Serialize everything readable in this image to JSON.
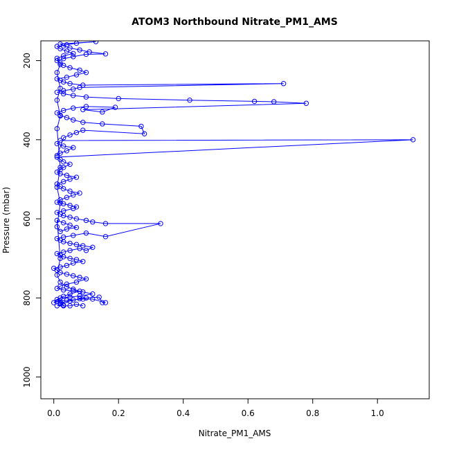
{
  "chart_data": {
    "type": "scatter",
    "title": "ATOM3 Northbound Nitrate_PM1_AMS",
    "xlabel": "Nitrate_PM1_AMS",
    "ylabel": "Pressure (mbar)",
    "xlim": [
      -0.04,
      1.16
    ],
    "ylim": [
      1055,
      150
    ],
    "y_reversed": true,
    "x_ticks": [
      "0.0",
      "0.2",
      "0.4",
      "0.6",
      "0.8",
      "1.0"
    ],
    "y_ticks": [
      "200",
      "400",
      "600",
      "800",
      "1000"
    ],
    "grid": false,
    "series": [
      {
        "color": "#0000ff",
        "marker": "open-circle",
        "connected": true,
        "points": [
          [
            0.01,
            820
          ],
          [
            0.03,
            818
          ],
          [
            0.02,
            812
          ],
          [
            0.05,
            808
          ],
          [
            0.08,
            802
          ],
          [
            0.1,
            800
          ],
          [
            0.14,
            798
          ],
          [
            0.15,
            812
          ],
          [
            0.16,
            812
          ],
          [
            0.12,
            803
          ],
          [
            0.09,
            803
          ],
          [
            0.06,
            805
          ],
          [
            0.04,
            806
          ],
          [
            0.02,
            808
          ],
          [
            0.01,
            810
          ],
          [
            0.0,
            812
          ],
          [
            0.02,
            800
          ],
          [
            0.05,
            798
          ],
          [
            0.08,
            795
          ],
          [
            0.12,
            790
          ],
          [
            0.09,
            785
          ],
          [
            0.06,
            782
          ],
          [
            0.03,
            780
          ],
          [
            0.01,
            776
          ],
          [
            0.02,
            770
          ],
          [
            0.04,
            765
          ],
          [
            0.07,
            760
          ],
          [
            0.1,
            752
          ],
          [
            0.08,
            748
          ],
          [
            0.06,
            744
          ],
          [
            0.04,
            740
          ],
          [
            0.02,
            736
          ],
          [
            0.01,
            730
          ],
          [
            0.0,
            725
          ],
          [
            0.02,
            722
          ],
          [
            0.04,
            718
          ],
          [
            0.06,
            712
          ],
          [
            0.09,
            708
          ],
          [
            0.07,
            703
          ],
          [
            0.05,
            700
          ],
          [
            0.03,
            696
          ],
          [
            0.02,
            692
          ],
          [
            0.01,
            688
          ],
          [
            0.03,
            684
          ],
          [
            0.05,
            680
          ],
          [
            0.08,
            675
          ],
          [
            0.1,
            680
          ],
          [
            0.12,
            672
          ],
          [
            0.09,
            668
          ],
          [
            0.07,
            665
          ],
          [
            0.05,
            662
          ],
          [
            0.03,
            658
          ],
          [
            0.02,
            654
          ],
          [
            0.01,
            650
          ],
          [
            0.03,
            646
          ],
          [
            0.06,
            642
          ],
          [
            0.1,
            636
          ],
          [
            0.16,
            645
          ],
          [
            0.33,
            612
          ],
          [
            0.16,
            612
          ],
          [
            0.12,
            608
          ],
          [
            0.1,
            604
          ],
          [
            0.07,
            600
          ],
          [
            0.05,
            596
          ],
          [
            0.03,
            592
          ],
          [
            0.02,
            588
          ],
          [
            0.01,
            584
          ],
          [
            0.03,
            580
          ],
          [
            0.06,
            574
          ],
          [
            0.07,
            570
          ],
          [
            0.05,
            566
          ],
          [
            0.03,
            562
          ],
          [
            0.01,
            558
          ],
          [
            0.02,
            552
          ],
          [
            0.04,
            546
          ],
          [
            0.06,
            540
          ],
          [
            0.08,
            535
          ],
          [
            0.05,
            530
          ],
          [
            0.03,
            524
          ],
          [
            0.02,
            518
          ],
          [
            0.01,
            512
          ],
          [
            0.03,
            506
          ],
          [
            0.05,
            500
          ],
          [
            0.07,
            495
          ],
          [
            0.04,
            490
          ],
          [
            0.02,
            486
          ],
          [
            0.01,
            482
          ],
          [
            0.02,
            476
          ],
          [
            0.03,
            470
          ],
          [
            0.05,
            462
          ],
          [
            0.03,
            456
          ],
          [
            0.02,
            450
          ],
          [
            0.01,
            444
          ],
          [
            1.11,
            400
          ],
          [
            0.02,
            402
          ],
          [
            0.01,
            410
          ],
          [
            0.03,
            416
          ],
          [
            0.06,
            420
          ],
          [
            0.04,
            428
          ],
          [
            0.02,
            434
          ],
          [
            0.01,
            440
          ],
          [
            0.03,
            395
          ],
          [
            0.05,
            388
          ],
          [
            0.07,
            382
          ],
          [
            0.09,
            376
          ],
          [
            0.28,
            385
          ],
          [
            0.27,
            366
          ],
          [
            0.15,
            360
          ],
          [
            0.09,
            356
          ],
          [
            0.06,
            350
          ],
          [
            0.04,
            344
          ],
          [
            0.02,
            338
          ],
          [
            0.01,
            332
          ],
          [
            0.03,
            326
          ],
          [
            0.06,
            320
          ],
          [
            0.1,
            316
          ],
          [
            0.19,
            318
          ],
          [
            0.15,
            330
          ],
          [
            0.09,
            324
          ],
          [
            0.78,
            308
          ],
          [
            0.68,
            304
          ],
          [
            0.62,
            303
          ],
          [
            0.42,
            300
          ],
          [
            0.2,
            296
          ],
          [
            0.1,
            292
          ],
          [
            0.06,
            288
          ],
          [
            0.03,
            284
          ],
          [
            0.01,
            280
          ],
          [
            0.03,
            276
          ],
          [
            0.06,
            272
          ],
          [
            0.08,
            268
          ],
          [
            0.71,
            258
          ],
          [
            0.09,
            262
          ],
          [
            0.05,
            258
          ],
          [
            0.03,
            254
          ],
          [
            0.02,
            250
          ],
          [
            0.01,
            246
          ],
          [
            0.04,
            242
          ],
          [
            0.07,
            236
          ],
          [
            0.1,
            230
          ],
          [
            0.08,
            224
          ],
          [
            0.05,
            218
          ],
          [
            0.03,
            212
          ],
          [
            0.02,
            206
          ],
          [
            0.01,
            200
          ],
          [
            0.03,
            195
          ],
          [
            0.06,
            190
          ],
          [
            0.1,
            184
          ],
          [
            0.16,
            183
          ],
          [
            0.11,
            178
          ],
          [
            0.08,
            173
          ],
          [
            0.05,
            168
          ],
          [
            0.03,
            163
          ],
          [
            0.02,
            158
          ],
          [
            0.13,
            152
          ],
          [
            0.07,
            156
          ],
          [
            0.04,
            160
          ],
          [
            0.01,
            164
          ],
          [
            0.02,
            170
          ],
          [
            0.04,
            176
          ],
          [
            0.06,
            182
          ],
          [
            0.03,
            188
          ],
          [
            0.01,
            194
          ],
          [
            0.02,
            210
          ],
          [
            0.01,
            230
          ],
          [
            0.02,
            270
          ],
          [
            0.01,
            300
          ],
          [
            0.02,
            340
          ],
          [
            0.01,
            372
          ],
          [
            0.02,
            470
          ],
          [
            0.01,
            520
          ],
          [
            0.02,
            560
          ],
          [
            0.01,
            620
          ],
          [
            0.02,
            632
          ],
          [
            0.04,
            626
          ],
          [
            0.07,
            622
          ],
          [
            0.05,
            616
          ],
          [
            0.03,
            610
          ],
          [
            0.01,
            604
          ],
          [
            0.02,
            700
          ],
          [
            0.01,
            742
          ],
          [
            0.02,
            760
          ],
          [
            0.04,
            772
          ],
          [
            0.06,
            778
          ],
          [
            0.08,
            783
          ],
          [
            0.05,
            790
          ],
          [
            0.03,
            796
          ],
          [
            0.01,
            804
          ],
          [
            0.02,
            815
          ],
          [
            0.03,
            820
          ],
          [
            0.05,
            820
          ],
          [
            0.07,
            816
          ],
          [
            0.09,
            820
          ]
        ]
      }
    ]
  }
}
